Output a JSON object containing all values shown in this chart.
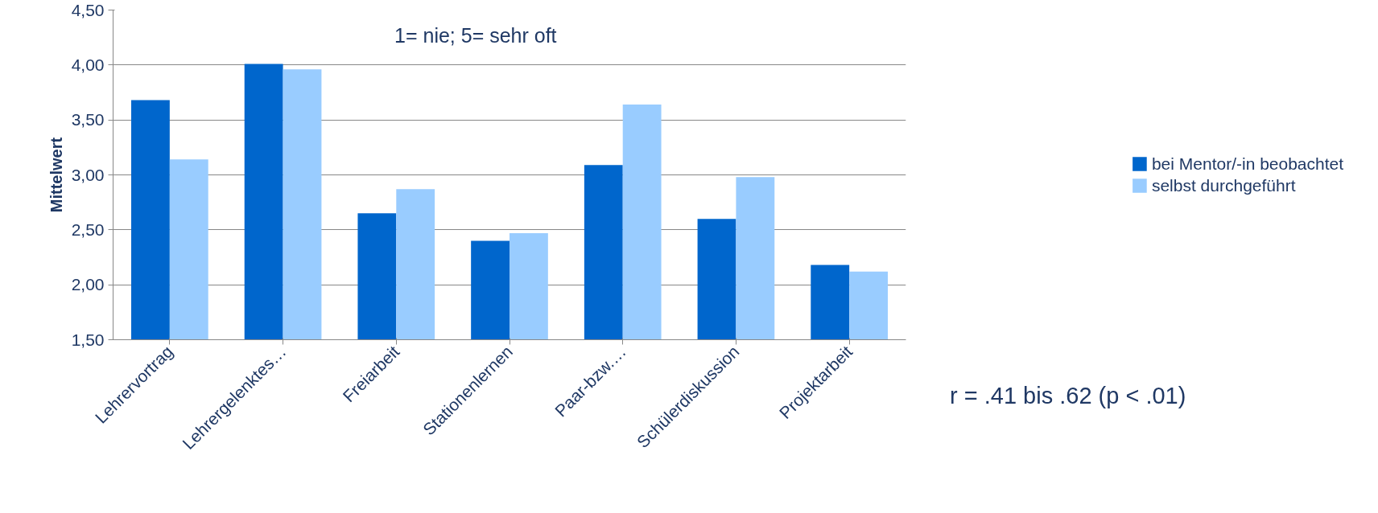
{
  "chart_data": {
    "type": "bar",
    "ylabel": "Mittelwert",
    "categories": [
      "Lehrervortrag",
      "Lehrergelenktes…",
      "Freiarbeit",
      "Stationenlernen",
      "Paar-bzw.…",
      "Schülerdiskussion",
      "Projektarbeit"
    ],
    "series": [
      {
        "name": "bei Mentor/-in beobachtet",
        "color": "#0066cc",
        "values": [
          3.68,
          4.01,
          2.65,
          2.4,
          3.09,
          2.6,
          2.18
        ]
      },
      {
        "name": "selbst durchgeführt",
        "color": "#99ccff",
        "values": [
          3.14,
          3.96,
          2.87,
          2.47,
          3.64,
          2.98,
          2.12
        ]
      }
    ],
    "ylim": [
      1.5,
      4.5
    ],
    "yticks": [
      {
        "value": 1.5,
        "label": "1,50"
      },
      {
        "value": 2,
        "label": "2,00"
      },
      {
        "value": 2.5,
        "label": "2,50"
      },
      {
        "value": 3,
        "label": "3,00"
      },
      {
        "value": 3.5,
        "label": "3,50"
      },
      {
        "value": 4,
        "label": "4,00"
      },
      {
        "value": 4.5,
        "label": "4,50"
      }
    ],
    "grid": "y",
    "legend": "right",
    "annotations": [
      "1= nie; 5= sehr oft",
      "r = .41 bis .62 (p < .01)"
    ]
  }
}
